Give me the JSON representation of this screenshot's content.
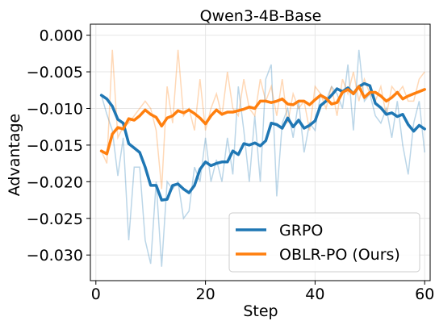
{
  "chart_data": {
    "type": "line",
    "title": "Qwen3-4B-Base",
    "xlabel": "Step",
    "ylabel": "Advantage",
    "xlim": [
      -1,
      61
    ],
    "ylim": [
      -0.0335,
      0.0015
    ],
    "xticks": [
      0,
      20,
      40,
      60
    ],
    "yticks": [
      0.0,
      -0.005,
      -0.01,
      -0.015,
      -0.02,
      -0.025,
      -0.03
    ],
    "ytick_labels": [
      "0.000",
      "−0.005",
      "−0.010",
      "−0.015",
      "−0.020",
      "−0.025",
      "−0.030"
    ],
    "grid": true,
    "legend_position": "lower-right",
    "x": [
      1,
      2,
      3,
      4,
      5,
      6,
      7,
      8,
      9,
      10,
      11,
      12,
      13,
      14,
      15,
      16,
      17,
      18,
      19,
      20,
      21,
      22,
      23,
      24,
      25,
      26,
      27,
      28,
      29,
      30,
      31,
      32,
      33,
      34,
      35,
      36,
      37,
      38,
      39,
      40,
      41,
      42,
      43,
      44,
      45,
      46,
      47,
      48,
      49,
      50,
      51,
      52,
      53,
      54,
      55,
      56,
      57,
      58,
      59,
      60
    ],
    "series": [
      {
        "name": "GRPO",
        "color": "#1f77b4",
        "values": [
          -0.0082,
          -0.0087,
          -0.0097,
          -0.0115,
          -0.012,
          -0.0148,
          -0.0154,
          -0.016,
          -0.018,
          -0.0205,
          -0.0205,
          -0.0225,
          -0.0224,
          -0.0205,
          -0.0203,
          -0.021,
          -0.0215,
          -0.0205,
          -0.0183,
          -0.0173,
          -0.0178,
          -0.0175,
          -0.0173,
          -0.0173,
          -0.0158,
          -0.0163,
          -0.0148,
          -0.015,
          -0.0147,
          -0.0151,
          -0.0144,
          -0.012,
          -0.0122,
          -0.0127,
          -0.0113,
          -0.0125,
          -0.0116,
          -0.0127,
          -0.0123,
          -0.0117,
          -0.0096,
          -0.009,
          -0.0082,
          -0.0073,
          -0.0077,
          -0.0072,
          -0.008,
          -0.007,
          -0.0066,
          -0.0069,
          -0.0093,
          -0.0099,
          -0.0108,
          -0.0106,
          -0.0111,
          -0.0108,
          -0.0122,
          -0.0131,
          -0.0123,
          -0.0128
        ],
        "raw_values": [
          -0.0082,
          -0.0108,
          -0.013,
          -0.0192,
          -0.014,
          -0.028,
          -0.018,
          -0.018,
          -0.028,
          -0.0312,
          -0.02,
          -0.0316,
          -0.02,
          -0.021,
          -0.02,
          -0.025,
          -0.024,
          -0.018,
          -0.02,
          -0.014,
          -0.02,
          -0.017,
          -0.02,
          -0.014,
          -0.019,
          -0.007,
          -0.013,
          -0.02,
          -0.011,
          -0.02,
          -0.006,
          -0.004,
          -0.022,
          -0.012,
          -0.01,
          -0.014,
          -0.009,
          -0.016,
          -0.012,
          -0.013,
          -0.008,
          -0.009,
          -0.007,
          -0.008,
          -0.01,
          -0.004,
          -0.013,
          -0.002,
          -0.009,
          -0.008,
          -0.011,
          -0.012,
          -0.01,
          -0.014,
          -0.009,
          -0.015,
          -0.019,
          -0.012,
          -0.009,
          -0.016
        ]
      },
      {
        "name": "OBLR-PO (Ours)",
        "color": "#ff7f0e",
        "values": [
          -0.0158,
          -0.0162,
          -0.0135,
          -0.0126,
          -0.0128,
          -0.0114,
          -0.0116,
          -0.011,
          -0.0102,
          -0.0108,
          -0.0112,
          -0.0124,
          -0.0113,
          -0.011,
          -0.0103,
          -0.0106,
          -0.0102,
          -0.0107,
          -0.0113,
          -0.0121,
          -0.011,
          -0.0102,
          -0.0108,
          -0.0105,
          -0.0105,
          -0.0103,
          -0.0101,
          -0.0098,
          -0.01,
          -0.009,
          -0.009,
          -0.0092,
          -0.009,
          -0.0087,
          -0.0094,
          -0.0095,
          -0.009,
          -0.009,
          -0.0095,
          -0.0088,
          -0.0082,
          -0.0086,
          -0.0094,
          -0.0092,
          -0.0078,
          -0.0074,
          -0.008,
          -0.007,
          -0.0085,
          -0.0078,
          -0.0078,
          -0.0083,
          -0.009,
          -0.0085,
          -0.0078,
          -0.0087,
          -0.0083,
          -0.008,
          -0.0077,
          -0.0074
        ],
        "raw_values": [
          -0.0158,
          -0.0175,
          -0.002,
          -0.014,
          -0.0125,
          -0.012,
          -0.011,
          -0.01,
          -0.009,
          -0.01,
          -0.013,
          -0.021,
          -0.007,
          -0.012,
          -0.002,
          -0.011,
          -0.01,
          -0.013,
          -0.006,
          -0.013,
          -0.01,
          -0.008,
          -0.011,
          -0.005,
          -0.01,
          -0.011,
          -0.006,
          -0.01,
          -0.011,
          -0.006,
          -0.009,
          -0.007,
          -0.011,
          -0.006,
          -0.012,
          -0.008,
          -0.01,
          -0.009,
          -0.013,
          -0.007,
          -0.008,
          -0.01,
          -0.007,
          -0.011,
          -0.006,
          -0.008,
          -0.005,
          -0.009,
          -0.006,
          -0.008,
          -0.009,
          -0.007,
          -0.011,
          -0.007,
          -0.008,
          -0.007,
          -0.009,
          -0.009,
          -0.006,
          -0.005
        ]
      }
    ]
  }
}
